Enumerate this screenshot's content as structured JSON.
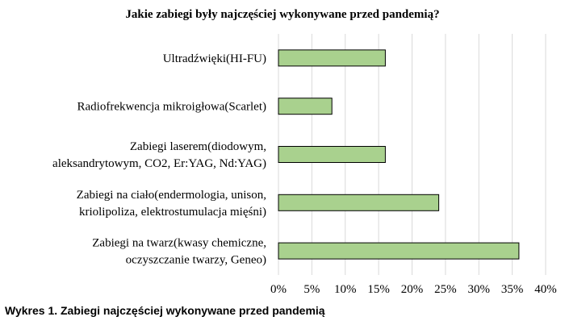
{
  "title": "Jakie zabiegi były najczęściej wykonywane przed pandemią?",
  "caption": "Wykres 1. Zabiegi najczęściej wykonywane przed pandemią",
  "colors": {
    "bar_fill": "#a9d18e",
    "bar_stroke": "#000000",
    "grid": "#d9d9d9"
  },
  "chart_data": {
    "type": "bar",
    "orientation": "horizontal",
    "title": "Jakie zabiegi były najczęściej wykonywane przed pandemią?",
    "categories": [
      [
        "Ultradźwięki(HI-FU)"
      ],
      [
        "Radiofrekwencja mikroigłowa(Scarlet)"
      ],
      [
        "Zabiegi laserem(diodowym,",
        "aleksandrytowym, CO2, Er:YAG, Nd:YAG)"
      ],
      [
        "Zabiegi na ciało(endermologia, unison,",
        "kriolipoliza, elektrostumulacja mięśni)"
      ],
      [
        "Zabiegi na twarz(kwasy chemiczne,",
        "oczyszczanie twarzy, Geneo)"
      ]
    ],
    "values": [
      0.16,
      0.08,
      0.16,
      0.24,
      0.36
    ],
    "xlim": [
      0,
      0.4
    ],
    "xticks": [
      "0%",
      "5%",
      "10%",
      "15%",
      "20%",
      "25%",
      "30%",
      "35%",
      "40%"
    ],
    "grid": true,
    "legend": "none"
  }
}
